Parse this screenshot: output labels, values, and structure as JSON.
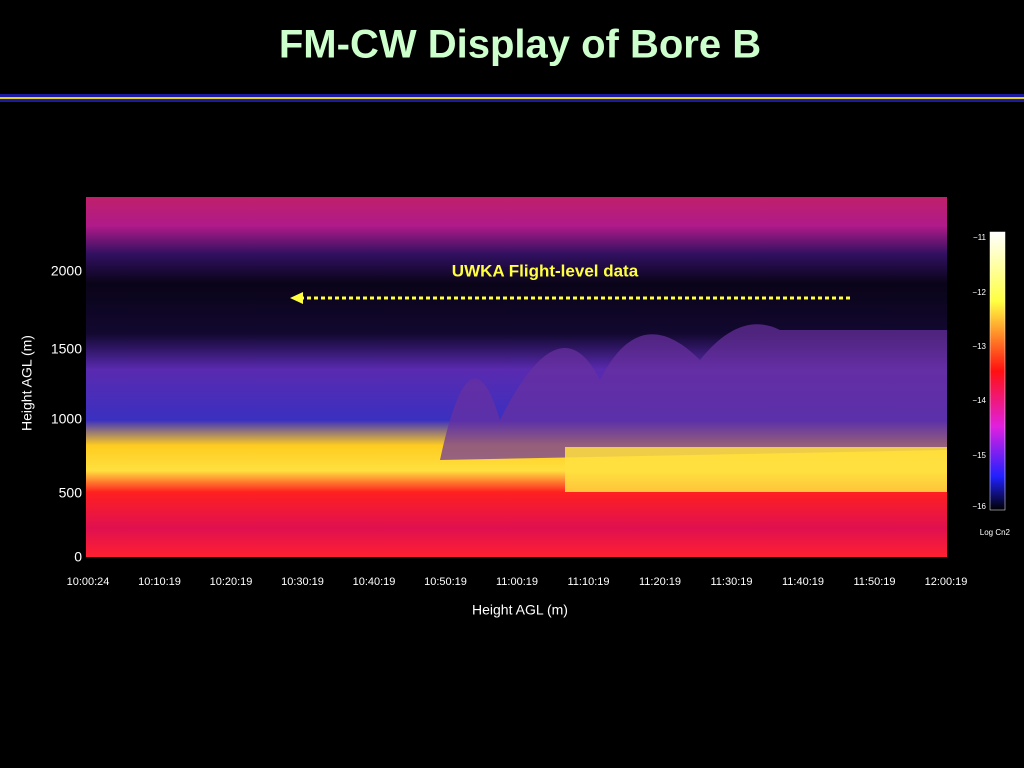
{
  "slide": {
    "title": "FM-CW Display of Bore B",
    "annotation": "UWKA Flight-level data",
    "y_axis_label": "Height AGL (m)",
    "x_axis_label": "Height AGL (m)",
    "y_tick_labels": [
      "2000",
      "1500",
      "1000",
      "500",
      "0"
    ],
    "x_tick_labels": [
      "10:00:24",
      "10:10:19",
      "10:20:19",
      "10:30:19",
      "10:40:19",
      "10:50:19",
      "11:00:19",
      "11:10:19",
      "11:20:19",
      "11:30:19",
      "11:40:19",
      "11:50:19",
      "12:00:19"
    ],
    "colorbar_labels": [
      "−11",
      "−12",
      "−13",
      "−14",
      "−15",
      "−16"
    ],
    "colorbar_title": "Log Cn2"
  }
}
